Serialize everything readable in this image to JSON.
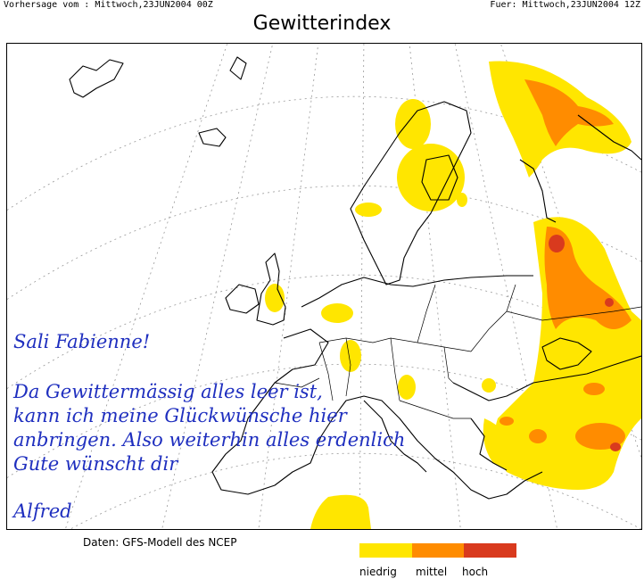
{
  "header": {
    "forecast_left": "Vorhersage vom : Mittwoch,23JUN2004 00Z",
    "forecast_right": "Fuer: Mittwoch,23JUN2004 12Z"
  },
  "title": "Gewitterindex",
  "message": {
    "greeting": "Sali Fabienne!",
    "line1": "Da Gewittermässig alles leer ist,",
    "line2": "kann ich meine Glückwünsche hier",
    "line3": "anbringen. Also weiterhin alles erdenlich",
    "line4": "Gute wünscht dir",
    "signature": "Alfred"
  },
  "source": "Daten: GFS-Modell des NCEP",
  "legend": [
    {
      "label": "niedrig",
      "color": "#ffe600"
    },
    {
      "label": "mittel",
      "color": "#ff8c00"
    },
    {
      "label": "hoch",
      "color": "#d93a1e"
    }
  ]
}
